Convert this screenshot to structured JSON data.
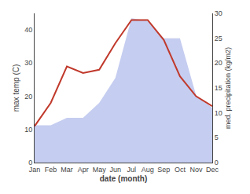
{
  "chart_data": {
    "type": "line",
    "categories": [
      "Jan",
      "Feb",
      "Mar",
      "Apr",
      "May",
      "Jun",
      "Jul",
      "Aug",
      "Sep",
      "Oct",
      "Nov",
      "Dec"
    ],
    "xlabel": "date (month)",
    "ylabel": "max temp (C)",
    "y2label": "med. precipitation (kg/m2)",
    "series": [
      {
        "type": "area",
        "axis": "y2",
        "color": "#c5cdf0",
        "values": [
          7.5,
          7.5,
          9,
          9,
          12,
          17,
          29,
          28.5,
          25,
          25,
          13.5,
          11
        ]
      },
      {
        "type": "line",
        "color": "#c0392b",
        "values": [
          11,
          18,
          29,
          27,
          28,
          36,
          43,
          43,
          37,
          26,
          20,
          17
        ]
      }
    ],
    "ylim": [
      0,
      45
    ],
    "yticks": [
      0,
      10,
      20,
      30,
      40
    ],
    "y2lim": [
      0,
      30
    ],
    "y2ticks": [
      0,
      5,
      10,
      15,
      20,
      25,
      30
    ],
    "grid": false
  }
}
